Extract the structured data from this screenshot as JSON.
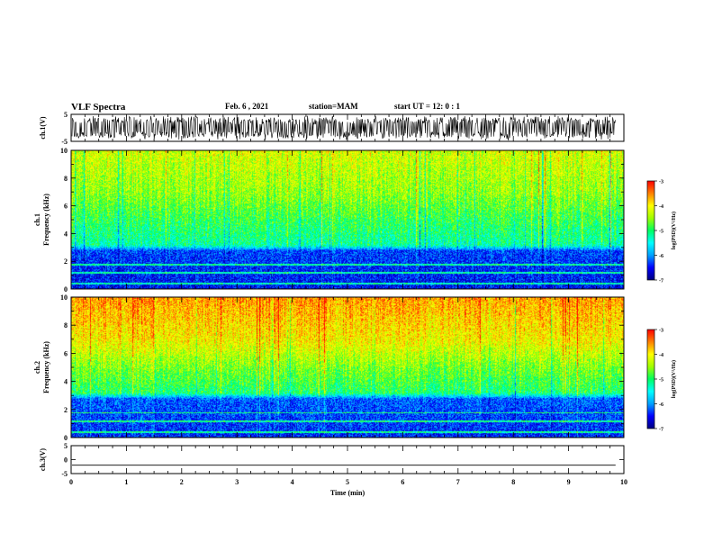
{
  "header": {
    "title": "VLF Spectra",
    "date": "Feb. 6 , 2021",
    "station": "station=MAM",
    "start": "start  UT =   12: 0  : 1"
  },
  "chart_data": [
    {
      "type": "line",
      "panel": "ch1-waveform",
      "ylabel": "ch.1(V)",
      "ylim": [
        -5,
        5
      ],
      "y_ticks": [
        "5",
        "-5"
      ],
      "pattern": "dense oscillating signal spanning roughly -4 to +4 V across the full 0–9.85 min record",
      "x_end": 9.85
    },
    {
      "type": "heatmap",
      "panel": "ch1-spectrogram",
      "ylabel": "ch.1 Frequency (kHz)",
      "ylim": [
        0,
        10
      ],
      "y_ticks": [
        "0",
        "2",
        "4",
        "6",
        "8",
        "10"
      ],
      "z_profile_khz": [
        [
          0,
          -6.5
        ],
        [
          2.8,
          -6.3
        ],
        [
          3.2,
          -5.2
        ],
        [
          5,
          -4.9
        ],
        [
          7,
          -4.5
        ],
        [
          10,
          -4.2
        ]
      ],
      "colorbar": {
        "label": "log(PSD)(V²/Hz)",
        "ticks": [
          "-3",
          "-4",
          "-5",
          "-6",
          "-7"
        ],
        "range": [
          -7,
          -3
        ]
      }
    },
    {
      "type": "heatmap",
      "panel": "ch2-spectrogram",
      "ylabel": "ch.2 Frequency (kHz)",
      "ylim": [
        0,
        10
      ],
      "y_ticks": [
        "0",
        "2",
        "4",
        "6",
        "8",
        "10"
      ],
      "z_profile_khz": [
        [
          0,
          -6.4
        ],
        [
          2.8,
          -6.2
        ],
        [
          3.2,
          -5.0
        ],
        [
          5,
          -4.6
        ],
        [
          7,
          -4.0
        ],
        [
          10,
          -3.6
        ]
      ],
      "colorbar": {
        "label": "log(PSD)(V²/Hz)",
        "ticks": [
          "-3",
          "-4",
          "-5",
          "-6",
          "-7"
        ],
        "range": [
          -7,
          -3
        ]
      }
    },
    {
      "type": "line",
      "panel": "ch3-waveform",
      "ylabel": "ch.3(V)",
      "ylim": [
        -5,
        5
      ],
      "y_ticks": [
        "5",
        "0",
        "-5"
      ],
      "values_constant": -2.0,
      "x_end": 9.85
    }
  ],
  "x_axis": {
    "label": "Time  (min)",
    "range": [
      0,
      10
    ],
    "ticks": [
      "0",
      "1",
      "2",
      "3",
      "4",
      "5",
      "6",
      "7",
      "8",
      "9",
      "10"
    ]
  },
  "colors": {
    "colormap": [
      "#000080",
      "#0000ff",
      "#00a0ff",
      "#00ffff",
      "#00ff60",
      "#a0ff00",
      "#ffff00",
      "#ff8000",
      "#ff0000",
      "#ffe0e0"
    ]
  }
}
